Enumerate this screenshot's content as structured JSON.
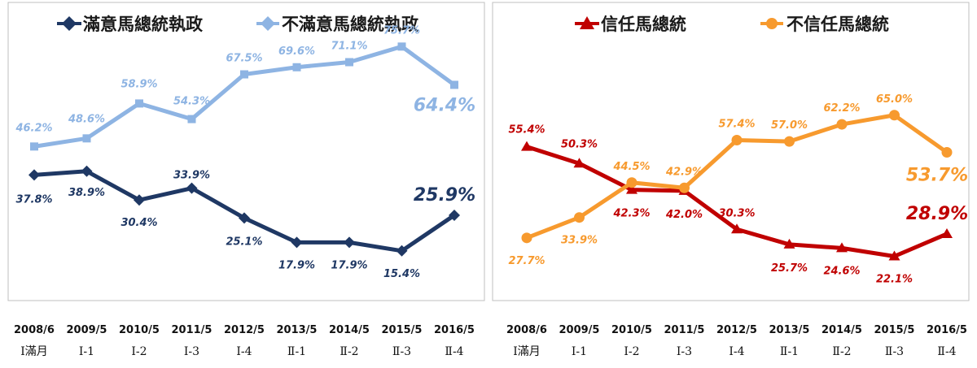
{
  "chart_data": [
    {
      "type": "line",
      "title": "",
      "categories": [
        "2008/6",
        "2009/5",
        "2010/5",
        "2011/5",
        "2012/5",
        "2013/5",
        "2014/5",
        "2015/5",
        "2016/5"
      ],
      "category_sublabels": [
        "Ⅰ滿月",
        "Ⅰ-1",
        "Ⅰ-2",
        "Ⅰ-3",
        "Ⅰ-4",
        "Ⅱ-1",
        "Ⅱ-2",
        "Ⅱ-3",
        "Ⅱ-4"
      ],
      "ylim": [
        0,
        100
      ],
      "grid": false,
      "legend_position": "top",
      "series": [
        {
          "name": "滿意馬總統執政",
          "color": "#1f3864",
          "marker": "diamond",
          "values": [
            37.8,
            38.9,
            30.4,
            33.9,
            25.1,
            17.9,
            17.9,
            15.4,
            25.9
          ],
          "labels": [
            "37.8%",
            "38.9%",
            "30.4%",
            "33.9%",
            "25.1%",
            "17.9%",
            "17.9%",
            "15.4%",
            "25.9%"
          ]
        },
        {
          "name": "不滿意馬總統執政",
          "color": "#8eb4e3",
          "marker": "square",
          "values": [
            46.2,
            48.6,
            58.9,
            54.3,
            67.5,
            69.6,
            71.1,
            75.7,
            64.4
          ],
          "labels": [
            "46.2%",
            "48.6%",
            "58.9%",
            "54.3%",
            "67.5%",
            "69.6%",
            "71.1%",
            "75.7%",
            "64.4%"
          ]
        }
      ]
    },
    {
      "type": "line",
      "title": "",
      "categories": [
        "2008/6",
        "2009/5",
        "2010/5",
        "2011/5",
        "2012/5",
        "2013/5",
        "2014/5",
        "2015/5",
        "2016/5"
      ],
      "category_sublabels": [
        "Ⅰ滿月",
        "Ⅰ-1",
        "Ⅰ-2",
        "Ⅰ-3",
        "Ⅰ-4",
        "Ⅱ-1",
        "Ⅱ-2",
        "Ⅱ-3",
        "Ⅱ-4"
      ],
      "ylim": [
        0,
        100
      ],
      "grid": false,
      "legend_position": "top",
      "series": [
        {
          "name": "信任馬總統",
          "color": "#c00000",
          "marker": "triangle",
          "values": [
            55.4,
            50.3,
            42.3,
            42.0,
            30.3,
            25.7,
            24.6,
            22.1,
            28.9
          ],
          "labels": [
            "55.4%",
            "50.3%",
            "42.3%",
            "42.0%",
            "30.3%",
            "25.7%",
            "24.6%",
            "22.1%",
            "28.9%"
          ]
        },
        {
          "name": "不信任馬總統",
          "color": "#f79a2e",
          "marker": "circle",
          "values": [
            27.7,
            33.9,
            44.5,
            42.9,
            57.4,
            57.0,
            62.2,
            65.0,
            53.7
          ],
          "labels": [
            "27.7%",
            "33.9%",
            "44.5%",
            "42.9%",
            "57.4%",
            "57.0%",
            "62.2%",
            "65.0%",
            "53.7%"
          ]
        }
      ]
    }
  ]
}
